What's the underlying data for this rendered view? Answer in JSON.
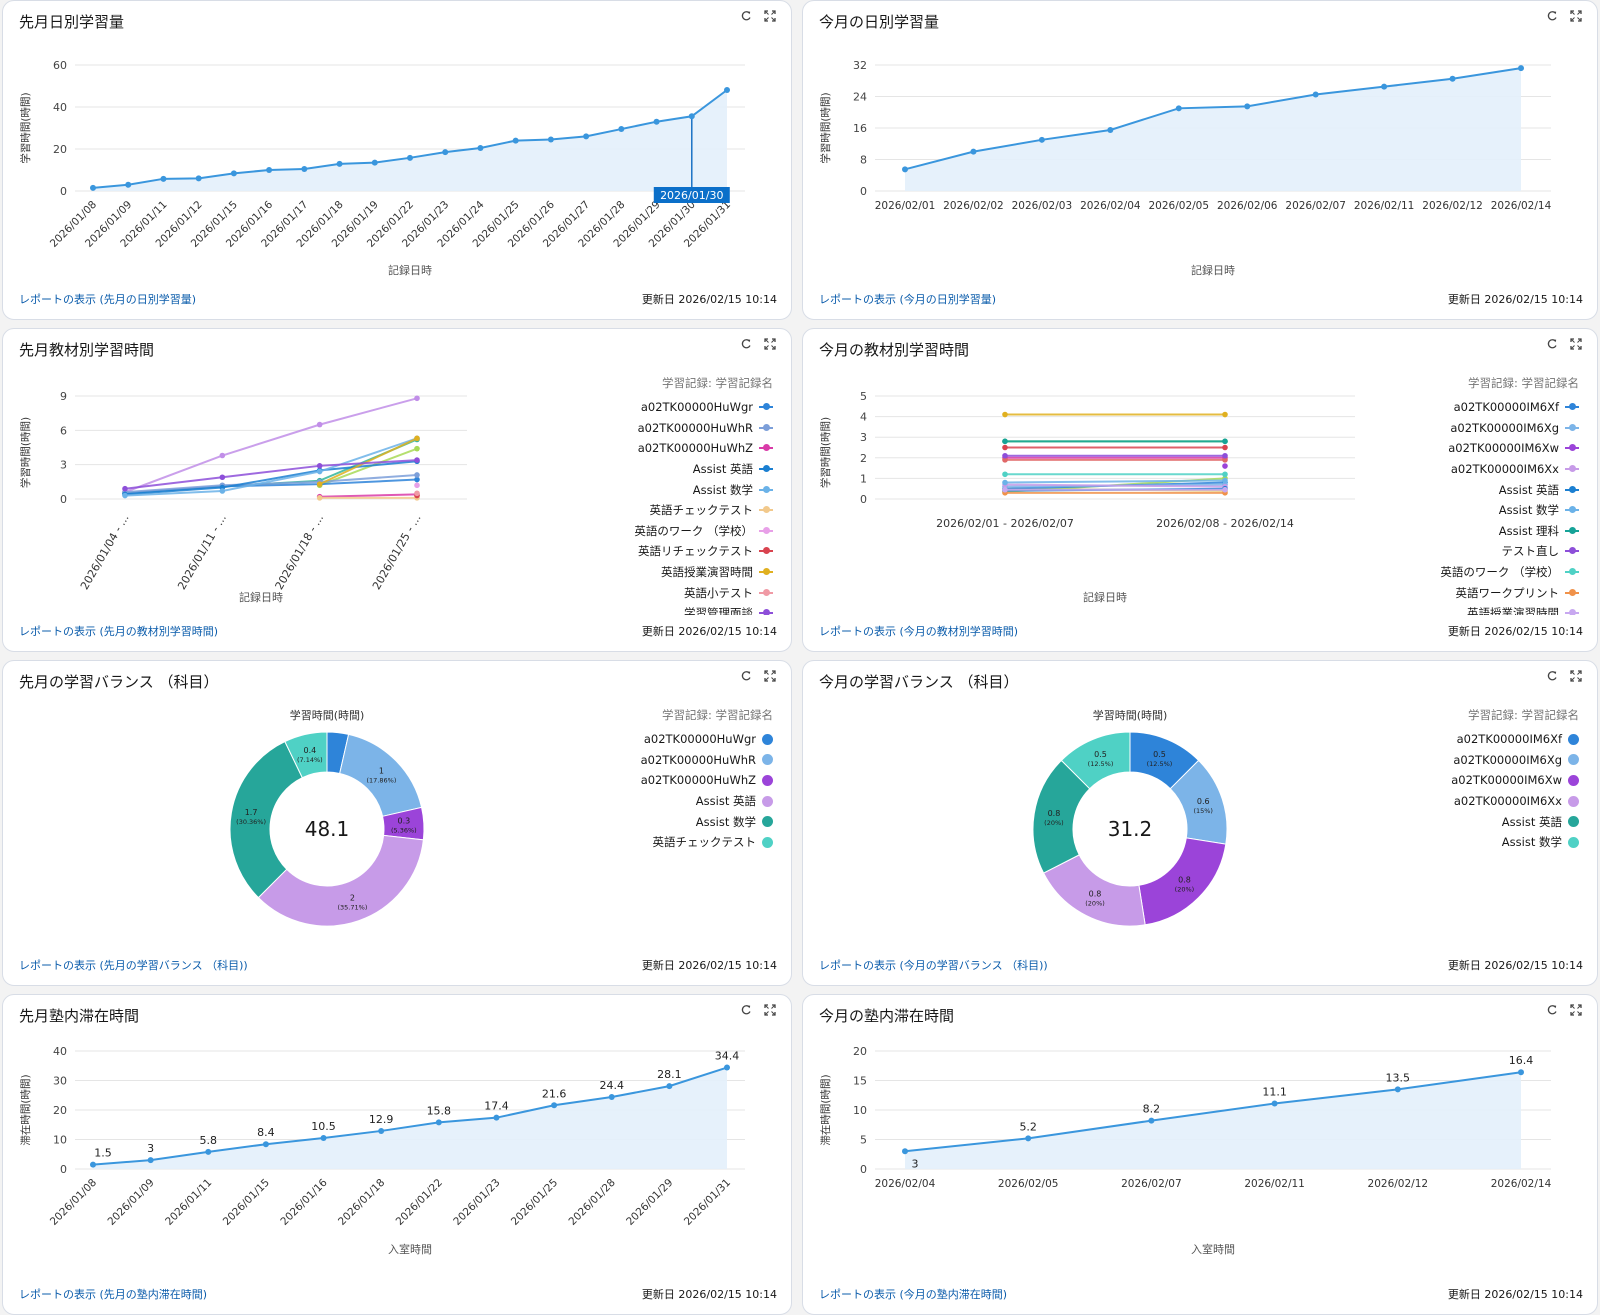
{
  "common": {
    "updated": "更新日 2026/02/15 10:14"
  },
  "cards": [
    {
      "id": "last_daily",
      "title": "先月日別学習量",
      "link": "レポートの表示 (先月の日別学習量)",
      "chart_data": {
        "type": "area",
        "xlabel": "記録日時",
        "ylabel": "学習時間(時間)",
        "ylim": [
          0,
          60
        ],
        "yticks": [
          0,
          20,
          40,
          60
        ],
        "categories": [
          "2026/01/08",
          "2026/01/09",
          "2026/01/11",
          "2026/01/12",
          "2026/01/15",
          "2026/01/16",
          "2026/01/17",
          "2026/01/18",
          "2026/01/19",
          "2026/01/22",
          "2026/01/23",
          "2026/01/24",
          "2026/01/25",
          "2026/01/26",
          "2026/01/27",
          "2026/01/28",
          "2026/01/29",
          "2026/01/30",
          "2026/01/31"
        ],
        "values": [
          1.5,
          3,
          5.8,
          6,
          8.4,
          10,
          10.5,
          12.9,
          13.5,
          15.8,
          18.5,
          20.5,
          24,
          24.5,
          26,
          29.5,
          33,
          35.6,
          48.1
        ],
        "tooltip": "2026/01/30",
        "tooltip_index": 17
      }
    },
    {
      "id": "this_daily",
      "title": "今月の日別学習量",
      "link": "レポートの表示 (今月の日別学習量)",
      "chart_data": {
        "type": "area",
        "xlabel": "記録日時",
        "ylabel": "学習時間(時間)",
        "ylim": [
          0,
          32
        ],
        "yticks": [
          0,
          8,
          16,
          24,
          32
        ],
        "categories": [
          "2026/02/01",
          "2026/02/02",
          "2026/02/03",
          "2026/02/04",
          "2026/02/05",
          "2026/02/06",
          "2026/02/07",
          "2026/02/11",
          "2026/02/12",
          "2026/02/14"
        ],
        "values": [
          5.5,
          10,
          13,
          15.5,
          21,
          21.5,
          24.5,
          26.5,
          28.5,
          31.2
        ]
      }
    },
    {
      "id": "last_material",
      "title": "先月教材別学習時間",
      "link": "レポートの表示 (先月の教材別学習時間)",
      "chart_data": {
        "type": "line",
        "xlabel": "記録日時",
        "ylabel": "学習時間(時間)",
        "ylim": [
          0,
          9
        ],
        "yticks": [
          0,
          3,
          6,
          9
        ],
        "categories": [
          "2026/01/04 - ...",
          "2026/01/11 - ...",
          "2026/01/18 - ...",
          "2026/01/25 - ..."
        ],
        "legend_title": "学習記録: 学習記録名",
        "series": [
          {
            "name": "a02TK00000HuWgr",
            "color": "#2e84d9",
            "values": [
              0.5,
              1.1,
              1.3,
              1.7
            ]
          },
          {
            "name": "a02TK00000HuWhR",
            "color": "#7c9fd9",
            "values": [
              0.6,
              1.2,
              1.5,
              2.1
            ]
          },
          {
            "name": "a02TK00000HuWhZ",
            "color": "#d93ba8",
            "values": [
              null,
              null,
              0.2,
              0.4
            ]
          },
          {
            "name": "Assist 英語",
            "color": "#1b7fd1",
            "values": [
              0.4,
              1.0,
              2.5,
              3.3
            ]
          },
          {
            "name": "Assist 数学",
            "color": "#6bb2e8",
            "values": [
              0.3,
              0.7,
              2.4,
              5.3
            ]
          },
          {
            "name": "英語チェックテスト",
            "color": "#f2c98c",
            "values": [
              null,
              null,
              0.1,
              0.1
            ]
          },
          {
            "name": "英語のワーク （学校）",
            "color": "#e8a0e8",
            "values": [
              null,
              null,
              null,
              1.2
            ]
          },
          {
            "name": "英語リチェックテスト",
            "color": "#d9434f",
            "values": [
              null,
              null,
              null,
              0.3
            ]
          },
          {
            "name": "英語授業演習時間",
            "color": "#e0b020",
            "values": [
              null,
              null,
              1.3,
              5.3
            ]
          },
          {
            "name": "英語小テスト",
            "color": "#f09aa5",
            "values": [
              null,
              null,
              null,
              0.5
            ]
          },
          {
            "name": "学習管理面談",
            "color": "#8d4fd9",
            "values": [
              0.9,
              1.9,
              2.9,
              3.4
            ]
          }
        ],
        "extra_series": [
          {
            "color": "#c18ee8",
            "values": [
              0.6,
              3.8,
              6.5,
              8.8
            ]
          },
          {
            "color": "#33b59a",
            "values": [
              0.5,
              1.1,
              1.6,
              5.2
            ]
          },
          {
            "color": "#a8d957",
            "values": [
              null,
              null,
              1.2,
              4.4
            ]
          }
        ]
      }
    },
    {
      "id": "this_material",
      "title": "今月の教材別学習時間",
      "link": "レポートの表示 (今月の教材別学習時間)",
      "chart_data": {
        "type": "line",
        "xlabel": "記録日時",
        "ylabel": "学習時間(時間)",
        "ylim": [
          0,
          5
        ],
        "yticks": [
          0,
          1,
          2,
          3,
          4,
          5
        ],
        "categories": [
          "2026/02/01 - 2026/02/07",
          "2026/02/08 - 2026/02/14"
        ],
        "legend_title": "学習記録: 学習記録名",
        "series": [
          {
            "name": "a02TK00000IM6Xf",
            "color": "#2e84d9",
            "values": [
              0.5,
              0.8
            ]
          },
          {
            "name": "a02TK00000IM6Xg",
            "color": "#7cb4e8",
            "values": [
              0.6,
              0.7
            ]
          },
          {
            "name": "a02TK00000IM6Xw",
            "color": "#9b44d9",
            "values": [
              null,
              1.6
            ]
          },
          {
            "name": "a02TK00000IM6Xx",
            "color": "#c79be8",
            "values": [
              0.7,
              0.6
            ]
          },
          {
            "name": "Assist 英語",
            "color": "#1b7fd1",
            "values": [
              0.4,
              0.5
            ]
          },
          {
            "name": "Assist 数学",
            "color": "#6bb2e8",
            "values": [
              0.8,
              0.9
            ]
          },
          {
            "name": "Assist 理科",
            "color": "#16a398",
            "values": [
              2.8,
              2.8
            ]
          },
          {
            "name": "テスト直し",
            "color": "#8d4fd9",
            "values": [
              2.1,
              2.1
            ]
          },
          {
            "name": "英語のワーク （学校）",
            "color": "#4fd1c5",
            "values": [
              1.2,
              1.2
            ]
          },
          {
            "name": "英語ワークプリント",
            "color": "#f0924a",
            "values": [
              0.3,
              0.3
            ]
          },
          {
            "name": "英語授業演習時間",
            "color": "#c8a8f0",
            "values": [
              0.45,
              0.45
            ]
          }
        ],
        "extra_series": [
          {
            "color": "#e0b020",
            "values": [
              4.1,
              4.1
            ]
          },
          {
            "color": "#4cbf5c",
            "values": [
              2.8,
              2.8
            ]
          },
          {
            "color": "#d9434f",
            "values": [
              2.5,
              2.5
            ]
          },
          {
            "color": "#d93ba8",
            "values": [
              2.0,
              2.0
            ]
          },
          {
            "color": "#e6c86a",
            "values": [
              0.5,
              0.4
            ]
          },
          {
            "color": "#a8d957",
            "values": [
              0.35,
              1.0
            ]
          },
          {
            "color": "#e06868",
            "values": [
              1.9,
              1.9
            ]
          }
        ]
      }
    },
    {
      "id": "last_balance",
      "title": "先月の学習バランス （科目）",
      "link": "レポートの表示 (先月の学習バランス （科目))",
      "chart_data": {
        "type": "pie",
        "title": "学習時間(時間)",
        "center": "48.1",
        "legend_title": "学習記録: 学習記録名",
        "slices": [
          {
            "name": "a02TK00000HuWgr",
            "color": "#2e84d9",
            "value": 0.2,
            "label": "",
            "pct": ""
          },
          {
            "name": "a02TK00000HuWhR",
            "color": "#7cb4e8",
            "value": 1,
            "label": "1",
            "pct": "(17.86%)"
          },
          {
            "name": "a02TK00000HuWhZ",
            "color": "#9b44d9",
            "value": 0.3,
            "label": "0.3",
            "pct": "(5.36%)"
          },
          {
            "name": "Assist 英語",
            "color": "#c79be8",
            "value": 2,
            "label": "2",
            "pct": "(35.71%)"
          },
          {
            "name": "Assist 数学",
            "color": "#26a69a",
            "value": 1.7,
            "label": "1.7",
            "pct": "(30.36%)"
          },
          {
            "name": "英語チェックテスト",
            "color": "#4fd1c5",
            "value": 0.4,
            "label": "0.4",
            "pct": "(7.14%)"
          }
        ]
      }
    },
    {
      "id": "this_balance",
      "title": "今月の学習バランス （科目）",
      "link": "レポートの表示 (今月の学習バランス （科目))",
      "chart_data": {
        "type": "pie",
        "title": "学習時間(時間)",
        "center": "31.2",
        "legend_title": "学習記録: 学習記録名",
        "slices": [
          {
            "name": "a02TK00000IM6Xf",
            "color": "#2e84d9",
            "value": 0.5,
            "label": "0.5",
            "pct": "(12.5%)"
          },
          {
            "name": "a02TK00000IM6Xg",
            "color": "#7cb4e8",
            "value": 0.6,
            "label": "0.6",
            "pct": "(15%)"
          },
          {
            "name": "a02TK00000IM6Xw",
            "color": "#9b44d9",
            "value": 0.8,
            "label": "0.8",
            "pct": "(20%)"
          },
          {
            "name": "a02TK00000IM6Xx",
            "color": "#c79be8",
            "value": 0.8,
            "label": "0.8",
            "pct": "(20%)"
          },
          {
            "name": "Assist 英語",
            "color": "#26a69a",
            "value": 0.8,
            "label": "0.8",
            "pct": "(20%)"
          },
          {
            "name": "Assist 数学",
            "color": "#4fd1c5",
            "value": 0.5,
            "label": "0.5",
            "pct": "(12.5%)"
          }
        ]
      }
    },
    {
      "id": "last_stay",
      "title": "先月塾内滞在時間",
      "link": "レポートの表示 (先月の塾内滞在時間)",
      "chart_data": {
        "type": "area",
        "xlabel": "入室時間",
        "ylabel": "滞在時間(時間)",
        "ylim": [
          0,
          40
        ],
        "yticks": [
          0,
          10,
          20,
          30,
          40
        ],
        "categories": [
          "2026/01/08",
          "2026/01/09",
          "2026/01/11",
          "2026/01/15",
          "2026/01/16",
          "2026/01/18",
          "2026/01/22",
          "2026/01/23",
          "2026/01/25",
          "2026/01/28",
          "2026/01/29",
          "2026/01/31"
        ],
        "values": [
          1.5,
          3,
          5.8,
          8.4,
          10.5,
          12.9,
          15.8,
          17.4,
          21.6,
          24.4,
          28.1,
          34.4
        ],
        "data_labels": [
          "1.5",
          "3",
          "5.8",
          "8.4",
          "10.5",
          "12.9",
          "15.8",
          "17.4",
          "21.6",
          "24.4",
          "28.1",
          "34.4"
        ]
      }
    },
    {
      "id": "this_stay",
      "title": "今月の塾内滞在時間",
      "link": "レポートの表示 (今月の塾内滞在時間)",
      "chart_data": {
        "type": "area",
        "xlabel": "入室時間",
        "ylabel": "滞在時間(時間)",
        "ylim": [
          0,
          20
        ],
        "yticks": [
          0,
          5,
          10,
          15,
          20
        ],
        "categories": [
          "2026/02/04",
          "2026/02/05",
          "2026/02/07",
          "2026/02/11",
          "2026/02/12",
          "2026/02/14"
        ],
        "values": [
          3,
          5.2,
          8.2,
          11.1,
          13.5,
          16.4
        ],
        "data_labels": [
          "3",
          "5.2",
          "8.2",
          "11.1",
          "13.5",
          "16.4"
        ]
      }
    }
  ]
}
